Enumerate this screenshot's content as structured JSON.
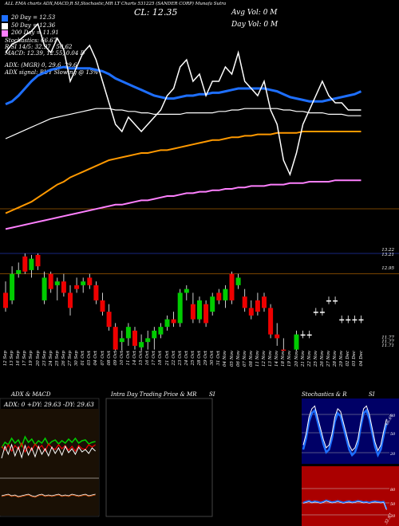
{
  "header": {
    "line1": "ALL EMA charts ADX,MACD,R SI,Stochastic,MR LT Charts 531225 (SANDER CORP) Munafa Sutra",
    "close_label": "CL: 12.35",
    "avg_vol": "Avg Vol: 0  M",
    "day_vol": "Day Vol: 0  M",
    "ema20": "20  Day  = 12.53",
    "ema50": "50  Day  = 12.36",
    "ema200": "200  Day  = 11.91",
    "stochastics": "Stochastics: 66.67",
    "rsi": "R      SI 14/5: 32.97 / 50.62",
    "macd": "MACD: 12.39, 12.55, 0.04  D",
    "adx": "ADX:                    (MGR) 0, 29.6, 29.6",
    "adx_signal": "ADX  signal:                                   BUY Slowing @ 13%",
    "colors": {
      "ema20": "#1e6fff",
      "ema50": "#ffffff",
      "ema200": "#ff80ff",
      "price": "#ffffff",
      "ema_orange": "#ff9900"
    }
  },
  "price_labels": [
    "13.22",
    "13.21",
    "12.95",
    "11.77",
    "11.77",
    "11.71"
  ],
  "dates": [
    "12 Sep",
    "13 Sep",
    "16 Sep",
    "17 Sep",
    "19 Sep",
    "20 Sep",
    "23 Sep",
    "24 Sep",
    "25 Sep",
    "26 Sep",
    "27 Sep",
    "30 Sep",
    "01 Oct",
    "03 Oct",
    "04 Oct",
    "07 Oct",
    "08 Oct",
    "09 Oct",
    "10 Oct",
    "11 Oct",
    "14 Oct",
    "15 Oct",
    "16 Oct",
    "17 Oct",
    "18 Oct",
    "21 Oct",
    "22 Oct",
    "23 Oct",
    "24 Oct",
    "25 Oct",
    "28 Oct",
    "29 Oct",
    "30 Oct",
    "31 Oct",
    "04 Nov",
    "05 Nov",
    "06 Nov",
    "07 Nov",
    "08 Nov",
    "11 Nov",
    "12 Nov",
    "13 Nov",
    "14 Nov",
    "18 Nov",
    "19 Nov",
    "20 Nov",
    "21 Nov",
    "22 Nov",
    "25 Nov",
    "26 Nov",
    "27 Nov",
    "28 Nov",
    "29 Nov",
    "02 Dec",
    "03 Dec",
    "04 Dec"
  ],
  "panels": {
    "adx_title": "ADX  & MACD",
    "adx_values": "ADX: 0   +DY: 29.63  -DY: 29.63",
    "intra_title": "Intra  Day Trading Price  & MR",
    "intra_si": "SI",
    "stoch_title": "Stochastics & R",
    "stoch_si": "SI",
    "stoch_levels": [
      "80",
      "50",
      "20"
    ],
    "stoch_value": "66.67",
    "rsi_levels": [
      "80",
      "50",
      "20"
    ],
    "rsi_value": "32.97"
  },
  "chart_data": {
    "type": "candlestick",
    "title": "ALL EMA charts ADX,MACD,R SI,Stochastic,MR LT Charts 531225 (SANDER CORP) Munafa Sutra",
    "ylim": [
      11.6,
      13.3
    ],
    "categories": [
      "12 Sep",
      "13 Sep",
      "16 Sep",
      "17 Sep",
      "19 Sep",
      "20 Sep",
      "23 Sep",
      "24 Sep",
      "25 Sep",
      "26 Sep",
      "27 Sep",
      "30 Sep",
      "01 Oct",
      "03 Oct",
      "04 Oct",
      "07 Oct",
      "08 Oct",
      "09 Oct",
      "10 Oct",
      "11 Oct",
      "14 Oct",
      "15 Oct",
      "16 Oct",
      "17 Oct",
      "18 Oct",
      "21 Oct",
      "22 Oct",
      "23 Oct",
      "24 Oct",
      "25 Oct",
      "28 Oct",
      "29 Oct",
      "30 Oct",
      "31 Oct",
      "04 Nov",
      "05 Nov",
      "06 Nov",
      "07 Nov",
      "08 Nov",
      "11 Nov",
      "12 Nov",
      "13 Nov",
      "14 Nov",
      "18 Nov",
      "19 Nov",
      "20 Nov",
      "21 Nov",
      "22 Nov",
      "25 Nov",
      "26 Nov",
      "27 Nov",
      "28 Nov",
      "29 Nov",
      "02 Dec",
      "03 Dec",
      "04 Dec"
    ],
    "candles": [
      [
        12.7,
        12.85,
        12.45,
        12.5
      ],
      [
        12.6,
        13.05,
        12.55,
        12.95
      ],
      [
        12.95,
        13.1,
        12.9,
        13.0
      ],
      [
        13.18,
        13.22,
        12.95,
        12.98
      ],
      [
        13.0,
        13.2,
        12.9,
        13.15
      ],
      [
        13.2,
        13.22,
        13.0,
        13.05
      ],
      [
        12.6,
        12.98,
        12.55,
        12.9
      ],
      [
        12.95,
        12.98,
        12.7,
        12.75
      ],
      [
        12.8,
        12.9,
        12.6,
        12.85
      ],
      [
        12.85,
        12.95,
        12.65,
        12.7
      ],
      [
        12.7,
        12.8,
        12.4,
        12.5
      ],
      [
        12.8,
        12.9,
        12.7,
        12.75
      ],
      [
        12.8,
        12.9,
        12.7,
        12.85
      ],
      [
        12.9,
        12.95,
        12.75,
        12.8
      ],
      [
        12.8,
        12.85,
        12.55,
        12.6
      ],
      [
        12.6,
        12.7,
        12.4,
        12.45
      ],
      [
        12.45,
        12.55,
        12.2,
        12.25
      ],
      [
        12.25,
        12.3,
        11.9,
        11.95
      ],
      [
        12.05,
        12.2,
        11.9,
        12.1
      ],
      [
        12.1,
        12.3,
        12.0,
        12.25
      ],
      [
        12.2,
        12.25,
        11.95,
        12.0
      ],
      [
        11.98,
        12.15,
        11.85,
        12.05
      ],
      [
        12.05,
        12.2,
        11.95,
        12.1
      ],
      [
        12.1,
        12.25,
        11.95,
        12.2
      ],
      [
        12.15,
        12.3,
        12.1,
        12.25
      ],
      [
        12.25,
        12.4,
        12.2,
        12.35
      ],
      [
        12.35,
        12.45,
        12.25,
        12.3
      ],
      [
        12.3,
        12.75,
        12.25,
        12.7
      ],
      [
        12.7,
        12.8,
        12.6,
        12.75
      ],
      [
        12.55,
        12.7,
        12.3,
        12.35
      ],
      [
        12.35,
        12.65,
        12.3,
        12.6
      ],
      [
        12.55,
        12.6,
        12.25,
        12.3
      ],
      [
        12.45,
        12.7,
        12.4,
        12.65
      ],
      [
        12.7,
        12.75,
        12.55,
        12.6
      ],
      [
        12.6,
        12.8,
        12.5,
        12.75
      ],
      [
        12.95,
        12.98,
        12.55,
        12.6
      ],
      [
        12.8,
        12.95,
        12.75,
        12.9
      ],
      [
        12.65,
        12.75,
        12.45,
        12.5
      ],
      [
        12.5,
        12.6,
        12.35,
        12.4
      ],
      [
        12.6,
        12.7,
        12.4,
        12.45
      ],
      [
        12.65,
        12.7,
        12.45,
        12.5
      ],
      [
        12.5,
        12.55,
        12.1,
        12.15
      ],
      [
        12.15,
        12.3,
        12.0,
        12.1
      ],
      [
        11.95,
        12.1,
        11.7,
        11.8
      ],
      [
        11.8,
        11.85,
        11.6,
        11.7
      ],
      [
        11.95,
        12.2,
        11.9,
        12.15
      ],
      [
        12.15,
        12.2,
        12.1,
        12.15
      ],
      [
        12.15,
        12.2,
        12.1,
        12.15
      ],
      [
        12.45,
        12.5,
        12.4,
        12.45
      ],
      [
        12.45,
        12.5,
        12.4,
        12.45
      ],
      [
        12.6,
        12.65,
        12.55,
        12.6
      ],
      [
        12.6,
        12.65,
        12.55,
        12.6
      ],
      [
        12.35,
        12.4,
        12.3,
        12.35
      ],
      [
        12.35,
        12.4,
        12.3,
        12.35
      ],
      [
        12.35,
        12.4,
        12.3,
        12.35
      ],
      [
        12.35,
        12.4,
        12.3,
        12.35
      ]
    ],
    "series": [
      {
        "name": "20  Day",
        "color": "#1e6fff",
        "values": [
          12.44,
          12.46,
          12.5,
          12.55,
          12.6,
          12.64,
          12.66,
          12.68,
          12.69,
          12.7,
          12.69,
          12.69,
          12.69,
          12.69,
          12.68,
          12.67,
          12.65,
          12.62,
          12.6,
          12.58,
          12.56,
          12.54,
          12.52,
          12.5,
          12.49,
          12.48,
          12.48,
          12.49,
          12.5,
          12.5,
          12.51,
          12.51,
          12.52,
          12.52,
          12.53,
          12.54,
          12.55,
          12.55,
          12.55,
          12.55,
          12.55,
          12.54,
          12.53,
          12.51,
          12.49,
          12.48,
          12.47,
          12.46,
          12.46,
          12.46,
          12.47,
          12.48,
          12.49,
          12.5,
          12.51,
          12.53
        ]
      },
      {
        "name": "50  Day",
        "color": "#ffffff",
        "values": [
          12.2,
          12.22,
          12.24,
          12.26,
          12.28,
          12.3,
          12.32,
          12.34,
          12.35,
          12.36,
          12.37,
          12.38,
          12.39,
          12.4,
          12.41,
          12.41,
          12.41,
          12.4,
          12.4,
          12.39,
          12.39,
          12.38,
          12.38,
          12.37,
          12.37,
          12.37,
          12.37,
          12.37,
          12.38,
          12.38,
          12.38,
          12.38,
          12.38,
          12.39,
          12.39,
          12.4,
          12.4,
          12.41,
          12.41,
          12.41,
          12.41,
          12.41,
          12.41,
          12.4,
          12.4,
          12.39,
          12.39,
          12.38,
          12.38,
          12.38,
          12.37,
          12.37,
          12.37,
          12.36,
          12.36,
          12.36
        ]
      },
      {
        "name": "200  Day",
        "color": "#ff80ff",
        "values": [
          11.57,
          11.58,
          11.59,
          11.6,
          11.61,
          11.62,
          11.63,
          11.64,
          11.65,
          11.66,
          11.67,
          11.68,
          11.69,
          11.7,
          11.71,
          11.72,
          11.73,
          11.74,
          11.74,
          11.75,
          11.76,
          11.77,
          11.77,
          11.78,
          11.79,
          11.8,
          11.8,
          11.81,
          11.82,
          11.82,
          11.83,
          11.83,
          11.84,
          11.84,
          11.85,
          11.85,
          11.86,
          11.86,
          11.87,
          11.87,
          11.87,
          11.88,
          11.88,
          11.88,
          11.89,
          11.89,
          11.89,
          11.9,
          11.9,
          11.9,
          11.9,
          11.91,
          11.91,
          11.91,
          11.91,
          11.91
        ]
      },
      {
        "name": "",
        "color": "#ff9900",
        "values": [
          11.68,
          11.7,
          11.72,
          11.74,
          11.76,
          11.79,
          11.82,
          11.85,
          11.88,
          11.9,
          11.93,
          11.95,
          11.97,
          11.99,
          12.01,
          12.03,
          12.05,
          12.06,
          12.07,
          12.08,
          12.09,
          12.1,
          12.1,
          12.11,
          12.12,
          12.12,
          12.13,
          12.14,
          12.15,
          12.16,
          12.17,
          12.18,
          12.19,
          12.19,
          12.2,
          12.21,
          12.21,
          12.22,
          12.22,
          12.23,
          12.23,
          12.23,
          12.24,
          12.24,
          12.24,
          12.24,
          12.25,
          12.25,
          12.25,
          12.25,
          12.25,
          12.25,
          12.25,
          12.25,
          12.25,
          12.25
        ]
      },
      {
        "name": "",
        "color": "#ffffff",
        "values": [
          12.8,
          12.86,
          12.88,
          12.92,
          12.95,
          13.0,
          12.85,
          12.8,
          12.9,
          12.82,
          12.6,
          12.7,
          12.8,
          12.85,
          12.75,
          12.6,
          12.45,
          12.3,
          12.25,
          12.35,
          12.3,
          12.25,
          12.3,
          12.35,
          12.4,
          12.5,
          12.55,
          12.7,
          12.75,
          12.6,
          12.65,
          12.5,
          12.6,
          12.6,
          12.7,
          12.65,
          12.8,
          12.6,
          12.55,
          12.5,
          12.6,
          12.4,
          12.3,
          12.05,
          11.95,
          12.1,
          12.3,
          12.4,
          12.5,
          12.6,
          12.5,
          12.45,
          12.45,
          12.4,
          12.4,
          12.4
        ]
      }
    ],
    "stochastic": [
      20,
      40,
      70,
      85,
      90,
      70,
      50,
      30,
      15,
      20,
      40,
      70,
      85,
      80,
      60,
      40,
      20,
      10,
      15,
      30,
      60,
      85,
      90,
      75,
      50,
      25,
      10,
      20,
      45,
      66.67
    ],
    "rsi": [
      48,
      50,
      52,
      49,
      51,
      50,
      48,
      50,
      53,
      51,
      49,
      50,
      52,
      50,
      48,
      50,
      51,
      49,
      50,
      52,
      51,
      49,
      50,
      48,
      50,
      51,
      50,
      49,
      50,
      32.97
    ]
  }
}
